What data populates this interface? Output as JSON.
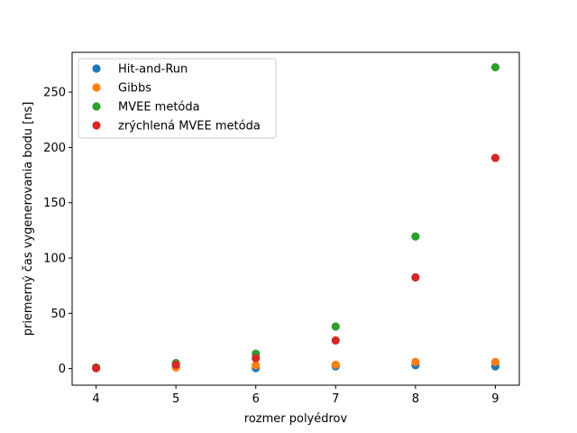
{
  "chart_data": {
    "type": "scatter",
    "title": "",
    "xlabel": "rozmer polyédrov",
    "ylabel": "priemerný čas vygenerovania bodu [ns]",
    "xlim": [
      3.7,
      9.3
    ],
    "ylim": [
      -15,
      286
    ],
    "xticks": [
      4,
      5,
      6,
      7,
      8,
      9
    ],
    "yticks": [
      0,
      50,
      100,
      150,
      200,
      250
    ],
    "x": [
      4,
      5,
      6,
      7,
      8,
      9
    ],
    "legend_position": "upper-left",
    "grid": false,
    "series": [
      {
        "name": "Hit-and-Run",
        "color": "#1f77b4",
        "values": [
          0.5,
          2,
          0.5,
          2,
          3,
          2
        ]
      },
      {
        "name": "Gibbs",
        "color": "#ff7f0e",
        "values": [
          0.5,
          1,
          3,
          3.5,
          6,
          6
        ]
      },
      {
        "name": "MVEE metóda",
        "color": "#2ca02c",
        "values": [
          1,
          5,
          13.5,
          38,
          119.5,
          272.5
        ]
      },
      {
        "name": "zrýchlená MVEE metóda",
        "color": "#d62728",
        "values": [
          0.5,
          3.5,
          9.5,
          25.5,
          82.5,
          190.5
        ]
      }
    ]
  }
}
